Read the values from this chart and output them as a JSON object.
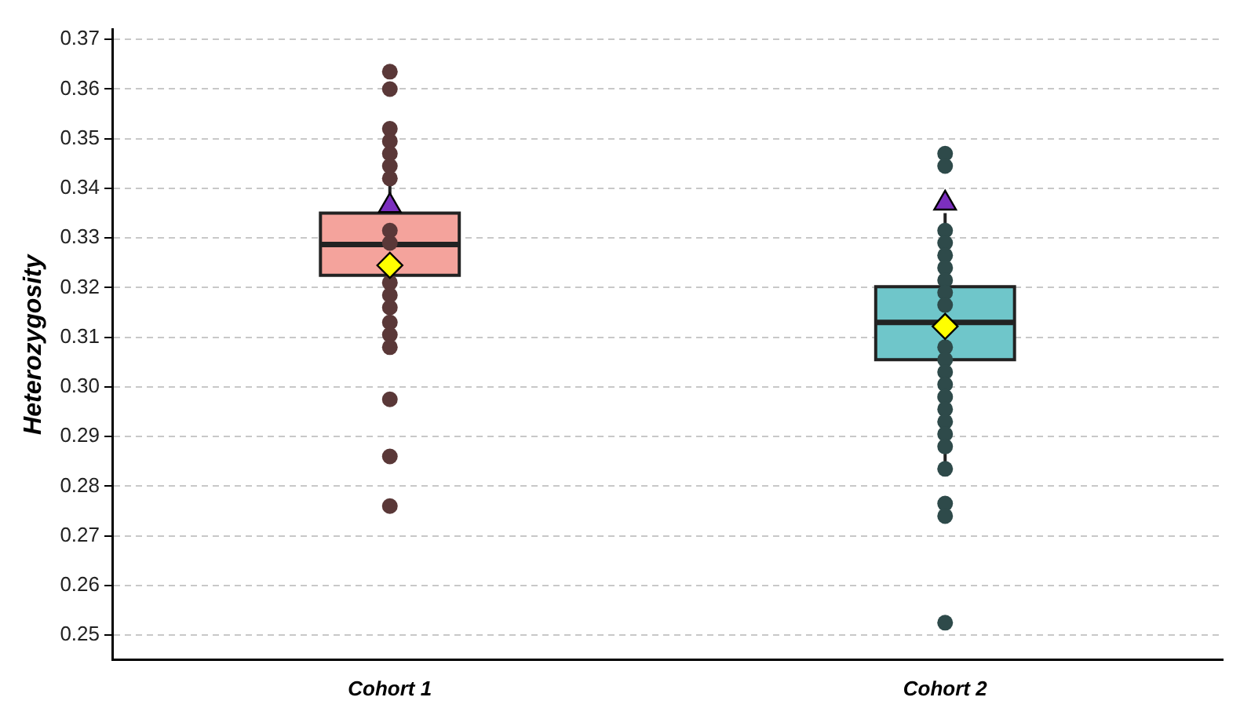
{
  "chart_data": {
    "type": "box",
    "ylabel": "Heterozygosity",
    "categories": [
      "Cohort 1",
      "Cohort 2"
    ],
    "boxes": [
      {
        "low": 0.3066,
        "q1": 0.3225,
        "median": 0.3287,
        "q3": 0.335,
        "high": 0.3519
      },
      {
        "low": 0.2833,
        "q1": 0.3055,
        "median": 0.313,
        "q3": 0.3202,
        "high": 0.335
      }
    ],
    "colors": [
      "#f4a39c",
      "#6fc6ca"
    ],
    "series": [
      {
        "type": "scatter",
        "color": "#5a3838",
        "marker": "circle",
        "x": [
          "Cohort 1",
          "Cohort 1",
          "Cohort 1",
          "Cohort 1",
          "Cohort 1",
          "Cohort 1",
          "Cohort 1",
          "Cohort 1",
          "Cohort 1",
          "Cohort 1",
          "Cohort 1",
          "Cohort 1",
          "Cohort 1",
          "Cohort 1",
          "Cohort 1",
          "Cohort 1",
          "Cohort 1",
          "Cohort 1"
        ],
        "values": [
          0.3635,
          0.36,
          0.352,
          0.3495,
          0.347,
          0.3445,
          0.342,
          0.3315,
          0.329,
          0.321,
          0.3185,
          0.316,
          0.313,
          0.3105,
          0.308,
          0.2975,
          0.286,
          0.276
        ]
      },
      {
        "type": "scatter",
        "color": "#2e4a4a",
        "marker": "circle",
        "x": [
          "Cohort 2",
          "Cohort 2",
          "Cohort 2",
          "Cohort 2",
          "Cohort 2",
          "Cohort 2",
          "Cohort 2",
          "Cohort 2",
          "Cohort 2",
          "Cohort 2",
          "Cohort 2",
          "Cohort 2",
          "Cohort 2",
          "Cohort 2",
          "Cohort 2",
          "Cohort 2",
          "Cohort 2",
          "Cohort 2",
          "Cohort 2",
          "Cohort 2",
          "Cohort 2",
          "Cohort 2"
        ],
        "values": [
          0.347,
          0.3445,
          0.3315,
          0.329,
          0.3265,
          0.324,
          0.3215,
          0.319,
          0.3165,
          0.308,
          0.3055,
          0.303,
          0.3005,
          0.298,
          0.2955,
          0.293,
          0.2905,
          0.288,
          0.2835,
          0.2765,
          0.274,
          0.2525
        ]
      },
      {
        "type": "scatter",
        "color": "#7b2fbe",
        "marker": "triangle",
        "x": [
          "Cohort 1",
          "Cohort 2"
        ],
        "values": [
          0.3365,
          0.337
        ]
      },
      {
        "type": "scatter",
        "color": "#ffff00",
        "marker": "diamond",
        "x": [
          "Cohort 1",
          "Cohort 2"
        ],
        "values": [
          0.3245,
          0.3122
        ]
      }
    ],
    "ylim": [
      0.245,
      0.372
    ],
    "yticks": [
      0.25,
      0.26,
      0.27,
      0.28,
      0.29,
      {
        "value": 0.3,
        "label": "0.30"
      },
      0.31,
      0.32,
      0.33,
      0.34,
      0.35,
      0.36,
      0.37
    ],
    "grid": "y",
    "legend": false
  }
}
